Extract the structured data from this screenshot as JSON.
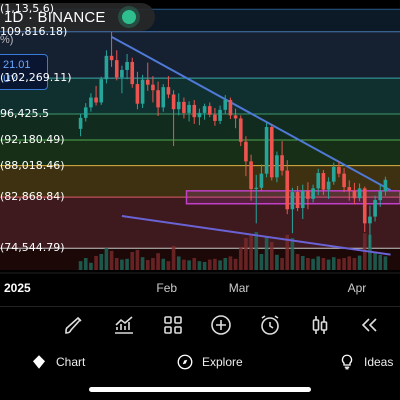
{
  "header": {
    "symbol": "1D · BINANCE",
    "change_pct": "%)",
    "live_color": "#2fbf8f"
  },
  "buy": {
    "price": "21.01",
    "label": "UY"
  },
  "fib_levels": [
    {
      "label": "(1,13,5.6)",
      "value": 113500,
      "color": "#2a5a8a"
    },
    {
      "label": "109,816.18)",
      "value": 109816.18,
      "color": "#4a76b0"
    },
    {
      "label": "(102,269.11)",
      "value": 102269.11,
      "color": "#3aa8a8"
    },
    {
      "label": "96,425.5",
      "value": 96425.5,
      "color": "#3e9a6a"
    },
    {
      "label": "(92,180.49)",
      "value": 92180.49,
      "color": "#4fa84f"
    },
    {
      "label": "(88,018.46)",
      "value": 88018.46,
      "color": "#e0b040"
    },
    {
      "label": "(82,868.84)",
      "value": 82868.84,
      "color": "#e05a6a"
    },
    {
      "label": "(74,544.79)",
      "value": 74544.79,
      "color": "#c8c8c8"
    }
  ],
  "x_axis": [
    {
      "label": "2025",
      "bold": true
    },
    {
      "label": "Feb",
      "bold": false
    },
    {
      "label": "Mar",
      "bold": false
    },
    {
      "label": "Apr",
      "bold": false
    }
  ],
  "chart_data": {
    "type": "candlestick",
    "y_range": [
      71000,
      115000
    ],
    "candles": [
      [
        94000,
        96500,
        92800,
        95800
      ],
      [
        95800,
        98200,
        95200,
        97500
      ],
      [
        97500,
        99800,
        96800,
        99100
      ],
      [
        99100,
        101000,
        97800,
        98300
      ],
      [
        98300,
        102500,
        97900,
        102100
      ],
      [
        102100,
        106800,
        101400,
        105900
      ],
      [
        105900,
        109800,
        104100,
        105200
      ],
      [
        105200,
        106800,
        101900,
        102400
      ],
      [
        102400,
        104300,
        99800,
        103600
      ],
      [
        103600,
        106200,
        102100,
        104900
      ],
      [
        104900,
        105600,
        100700,
        101300
      ],
      [
        101300,
        103300,
        97200,
        98100
      ],
      [
        98100,
        102800,
        97400,
        102000
      ],
      [
        102000,
        104800,
        100200,
        101200
      ],
      [
        101200,
        102600,
        98300,
        100300
      ],
      [
        100300,
        101700,
        96100,
        97500
      ],
      [
        97500,
        101300,
        96800,
        100800
      ],
      [
        100800,
        102600,
        99000,
        99600
      ],
      [
        99600,
        100300,
        91200,
        97200
      ],
      [
        97200,
        99800,
        96200,
        98400
      ],
      [
        98400,
        99100,
        95700,
        96600
      ],
      [
        96600,
        98500,
        95200,
        97900
      ],
      [
        97900,
        98700,
        94800,
        95900
      ],
      [
        95900,
        97300,
        94600,
        96600
      ],
      [
        96600,
        98100,
        95500,
        97700
      ],
      [
        97700,
        98300,
        95900,
        96300
      ],
      [
        96300,
        97400,
        94500,
        95300
      ],
      [
        95300,
        97800,
        94800,
        97100
      ],
      [
        97100,
        99500,
        96400,
        98700
      ],
      [
        98700,
        99100,
        95600,
        96200
      ],
      [
        96200,
        97300,
        94100,
        95700
      ],
      [
        95700,
        96200,
        91200,
        91900
      ],
      [
        91900,
        92800,
        86300,
        88700
      ],
      [
        88700,
        89800,
        82300,
        84200
      ],
      [
        84200,
        86500,
        78600,
        84400
      ],
      [
        84400,
        88200,
        83900,
        86700
      ],
      [
        86700,
        95000,
        86100,
        94300
      ],
      [
        94300,
        94800,
        85600,
        86100
      ],
      [
        86100,
        90300,
        85300,
        89700
      ],
      [
        89700,
        92000,
        86400,
        87200
      ],
      [
        87200,
        88900,
        80100,
        80900
      ],
      [
        80900,
        84400,
        77000,
        83700
      ],
      [
        83700,
        84700,
        80600,
        81100
      ],
      [
        81100,
        84900,
        79300,
        83900
      ],
      [
        83900,
        85300,
        80900,
        82600
      ],
      [
        82600,
        84900,
        82000,
        84300
      ],
      [
        84300,
        87500,
        83200,
        86800
      ],
      [
        86800,
        87300,
        83200,
        84100
      ],
      [
        84100,
        86100,
        82600,
        85400
      ],
      [
        85400,
        88500,
        84900,
        87800
      ],
      [
        87800,
        88700,
        86100,
        86700
      ],
      [
        86700,
        87600,
        83700,
        84500
      ],
      [
        84500,
        85600,
        82300,
        83900
      ],
      [
        83900,
        85200,
        81700,
        82700
      ],
      [
        82700,
        85100,
        82200,
        84300
      ],
      [
        84300,
        84600,
        77200,
        78600
      ],
      [
        78600,
        81500,
        74500,
        79700
      ],
      [
        79700,
        83100,
        78900,
        82400
      ],
      [
        82400,
        84900,
        81300,
        83800
      ],
      [
        83800,
        86200,
        83100,
        85700
      ]
    ],
    "volumes": [
      22,
      30,
      18,
      35,
      40,
      55,
      48,
      30,
      26,
      28,
      45,
      50,
      32,
      25,
      30,
      42,
      28,
      22,
      60,
      34,
      26,
      24,
      30,
      22,
      20,
      26,
      28,
      24,
      30,
      34,
      28,
      58,
      80,
      90,
      95,
      40,
      85,
      70,
      38,
      30,
      88,
      80,
      40,
      35,
      30,
      28,
      34,
      30,
      26,
      32,
      28,
      30,
      34,
      30,
      36,
      92,
      88,
      44,
      38,
      34
    ],
    "trendlines": [
      {
        "from": [
          6,
          109000
        ],
        "to": [
          60,
          84000
        ],
        "color": "#4f79d6"
      },
      {
        "from": [
          8,
          79800
        ],
        "to": [
          60,
          73500
        ],
        "color": "#6a63d6"
      }
    ],
    "zone": {
      "low": 81800,
      "high": 83900,
      "from": 21,
      "to": 60,
      "color": "#c040c8"
    },
    "month_ticks": [
      {
        "label": "2025",
        "index": 0
      },
      {
        "label": "Feb",
        "index": 17
      },
      {
        "label": "Mar",
        "index": 31
      },
      {
        "label": "Apr",
        "index": 54
      }
    ]
  },
  "toolbar": {
    "items": [
      {
        "name": "brush-icon"
      },
      {
        "name": "indicators-icon"
      },
      {
        "name": "layouts-icon"
      },
      {
        "name": "add-icon"
      },
      {
        "name": "alert-clock-icon"
      },
      {
        "name": "candles-icon"
      },
      {
        "name": "replay-icon"
      }
    ]
  },
  "nav": {
    "chart": "Chart",
    "explore": "Explore",
    "ideas": "Ideas"
  }
}
